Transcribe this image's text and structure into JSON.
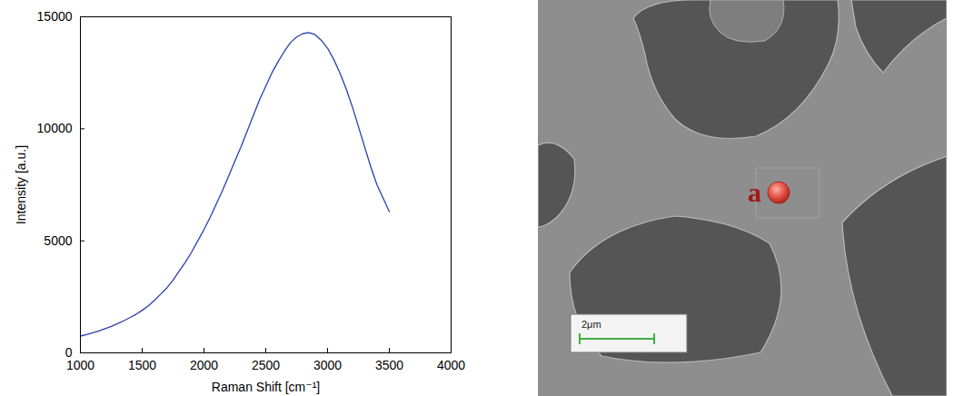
{
  "chart_data": {
    "type": "line",
    "x_label": "Raman Shift [cm⁻¹]",
    "y_label": "Intensity [a.u.]",
    "x": [
      1000,
      1050,
      1100,
      1150,
      1200,
      1250,
      1300,
      1350,
      1400,
      1450,
      1500,
      1550,
      1600,
      1650,
      1700,
      1750,
      1800,
      1850,
      1900,
      1950,
      2000,
      2050,
      2100,
      2150,
      2200,
      2250,
      2300,
      2350,
      2400,
      2450,
      2500,
      2550,
      2600,
      2650,
      2700,
      2750,
      2800,
      2850,
      2900,
      2950,
      3000,
      3050,
      3100,
      3150,
      3200,
      3250,
      3300,
      3350,
      3400,
      3450,
      3500
    ],
    "values": [
      750,
      820,
      900,
      980,
      1080,
      1180,
      1300,
      1430,
      1570,
      1720,
      1900,
      2100,
      2350,
      2620,
      2900,
      3250,
      3650,
      4050,
      4500,
      5000,
      5500,
      6050,
      6650,
      7250,
      7900,
      8550,
      9200,
      9900,
      10600,
      11300,
      11900,
      12500,
      13000,
      13450,
      13850,
      14100,
      14250,
      14300,
      14200,
      13950,
      13600,
      13100,
      12500,
      11800,
      11000,
      10100,
      9200,
      8300,
      7500,
      6900,
      6300
    ],
    "color": "#2b3fae",
    "xlim": [
      1000,
      4000
    ],
    "xticks": [
      1000,
      1500,
      2000,
      2500,
      3000,
      3500,
      4000
    ],
    "ylim": [
      0,
      15000
    ],
    "yticks": [
      0,
      5000,
      10000,
      15000
    ],
    "grid": false
  },
  "image": {
    "point_label": "a",
    "scale_bar_label": "2μm"
  }
}
